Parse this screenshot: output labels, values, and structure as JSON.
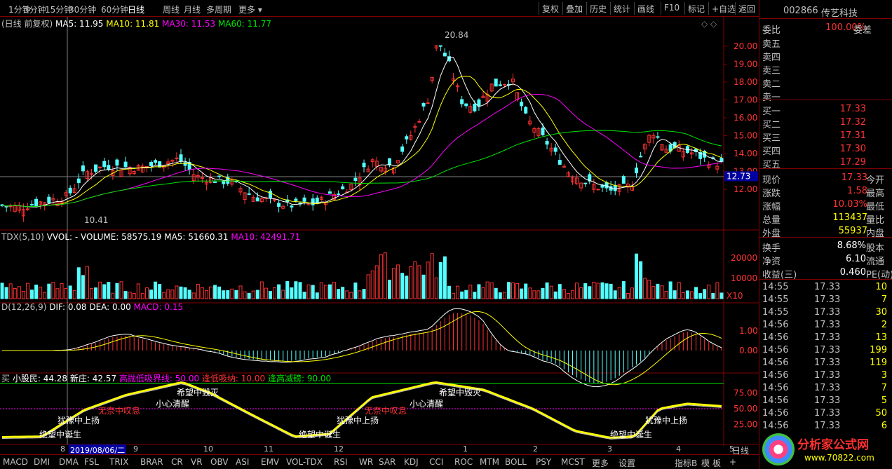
{
  "topbar": {
    "items": [
      "1分钟",
      "5分钟",
      "15分钟",
      "30分钟",
      "60分钟",
      "日线",
      "周线",
      "月线",
      "多周期",
      "更多 ▾"
    ],
    "active": "日线",
    "buttons": [
      "复权",
      "叠加",
      "历史",
      "统计",
      "画线",
      "F10",
      "标记",
      "+自选",
      "返回"
    ]
  },
  "main_legend": {
    "label": "(日线 前复权)",
    "ma5": "MA5: 11.95",
    "ma10": "MA10: 11.81",
    "ma30": "MA30: 11.53",
    "ma60": "MA60: 11.77"
  },
  "price_ticks": [
    "20.00",
    "19.00",
    "18.00",
    "17.00",
    "16.00",
    "15.00",
    "14.00",
    "13.00",
    "12.00"
  ],
  "price_high_label": "20.84",
  "price_low_label": "10.41",
  "current_price_tag": "12.73",
  "vol_legend": {
    "label": "TDX(5,10)",
    "vol": "VVOL: -",
    "volume": "VOLUME: 58575.19",
    "ma5": "MA5: 51660.31",
    "ma10": "MA10: 42491.71"
  },
  "vol_ticks": [
    "20000",
    "10000"
  ],
  "vol_unit": "X10",
  "macd_legend": {
    "label": "D(12,26,9)",
    "dif": "DIF: 0.08",
    "dea": "DEA: 0.00",
    "macd": "MACD: 0.15"
  },
  "macd_ticks": [
    "1.00",
    "0.00"
  ],
  "ind_legend": {
    "a": "买",
    "b": "小股民: 44.28",
    "c": "新庄: 42.57",
    "d": "高抛低吸界线: 50.00",
    "e": "逢低吸纳: 10.00",
    "f": "逢高减磅: 90.00"
  },
  "ind_ticks": [
    "75.00",
    "50.00",
    "25.00"
  ],
  "annotations": [
    "绝望中诞生",
    "犹豫中上扬",
    "无奈中叹息",
    "小心清醒",
    "希望中毁灭",
    "绝望中诞生",
    "犹豫中上扬",
    "无奈中叹息",
    "小心清醒",
    "希望中毁灭",
    "绝望中诞生",
    "犹豫中上扬"
  ],
  "date_ticks": [
    "8",
    "2019/08/06/二",
    "9",
    "10",
    "11",
    "12",
    "1",
    "2",
    "3",
    "4",
    "5"
  ],
  "bottom_tabs": [
    "MACD",
    "DMI",
    "DMA",
    "FSL",
    "TRIX",
    "BRAR",
    "CR",
    "VR",
    "OBV",
    "ASI",
    "EMV",
    "VOL-TDX",
    "RSI",
    "WR",
    "SAR",
    "KDJ",
    "CCI",
    "ROC",
    "MTM",
    "BOLL",
    "PSY",
    "MCST",
    "更多",
    "设置"
  ],
  "bottom_right": [
    "指标B",
    "模",
    "板",
    "+"
  ],
  "rp": {
    "stock_code": "002866",
    "stock_name": "传艺科技",
    "weibi_lab": "委比",
    "weibi_val": "100.00%",
    "weicha_lab": "委差",
    "sell": [
      "卖五",
      "卖四",
      "卖三",
      "卖二",
      "卖一"
    ],
    "buy": [
      {
        "l": "买一",
        "v": "17.33"
      },
      {
        "l": "买二",
        "v": "17.32"
      },
      {
        "l": "买三",
        "v": "17.31"
      },
      {
        "l": "买四",
        "v": "17.30"
      },
      {
        "l": "买五",
        "v": "17.29"
      }
    ],
    "quote": [
      {
        "l": "现价",
        "v": "17.33",
        "l2": "今开"
      },
      {
        "l": "涨跌",
        "v": "1.58",
        "l2": "最高"
      },
      {
        "l": "涨幅",
        "v": "10.03%",
        "l2": "最低"
      },
      {
        "l": "总量",
        "v": "113437",
        "l2": "量比"
      },
      {
        "l": "外盘",
        "v": "55937",
        "l2": "内盘"
      }
    ],
    "stats": [
      {
        "l": "换手",
        "v": "8.68%",
        "l2": "股本"
      },
      {
        "l": "净资",
        "v": "6.10",
        "l2": "流通"
      },
      {
        "l": "收益(三)",
        "v": "0.460",
        "l2": "PE(动)"
      }
    ],
    "ticks": [
      {
        "t": "14:55",
        "p": "17.33",
        "q": "10"
      },
      {
        "t": "14:55",
        "p": "17.33",
        "q": "7"
      },
      {
        "t": "14:55",
        "p": "17.33",
        "q": "30"
      },
      {
        "t": "14:56",
        "p": "17.33",
        "q": "2"
      },
      {
        "t": "14:56",
        "p": "17.33",
        "q": "13"
      },
      {
        "t": "14:56",
        "p": "17.33",
        "q": "199"
      },
      {
        "t": "14:56",
        "p": "17.33",
        "q": "119"
      },
      {
        "t": "14:56",
        "p": "17.33",
        "q": "3"
      },
      {
        "t": "14:56",
        "p": "17.33",
        "q": "7"
      },
      {
        "t": "14:56",
        "p": "17.33",
        "q": "5"
      },
      {
        "t": "14:56",
        "p": "17.33",
        "q": "50"
      },
      {
        "t": "14:56",
        "p": "17.33",
        "q": "6"
      }
    ]
  },
  "corner_tab": "日线",
  "watermark": {
    "name": "分析家公式网",
    "url": "www.70822.com"
  }
}
